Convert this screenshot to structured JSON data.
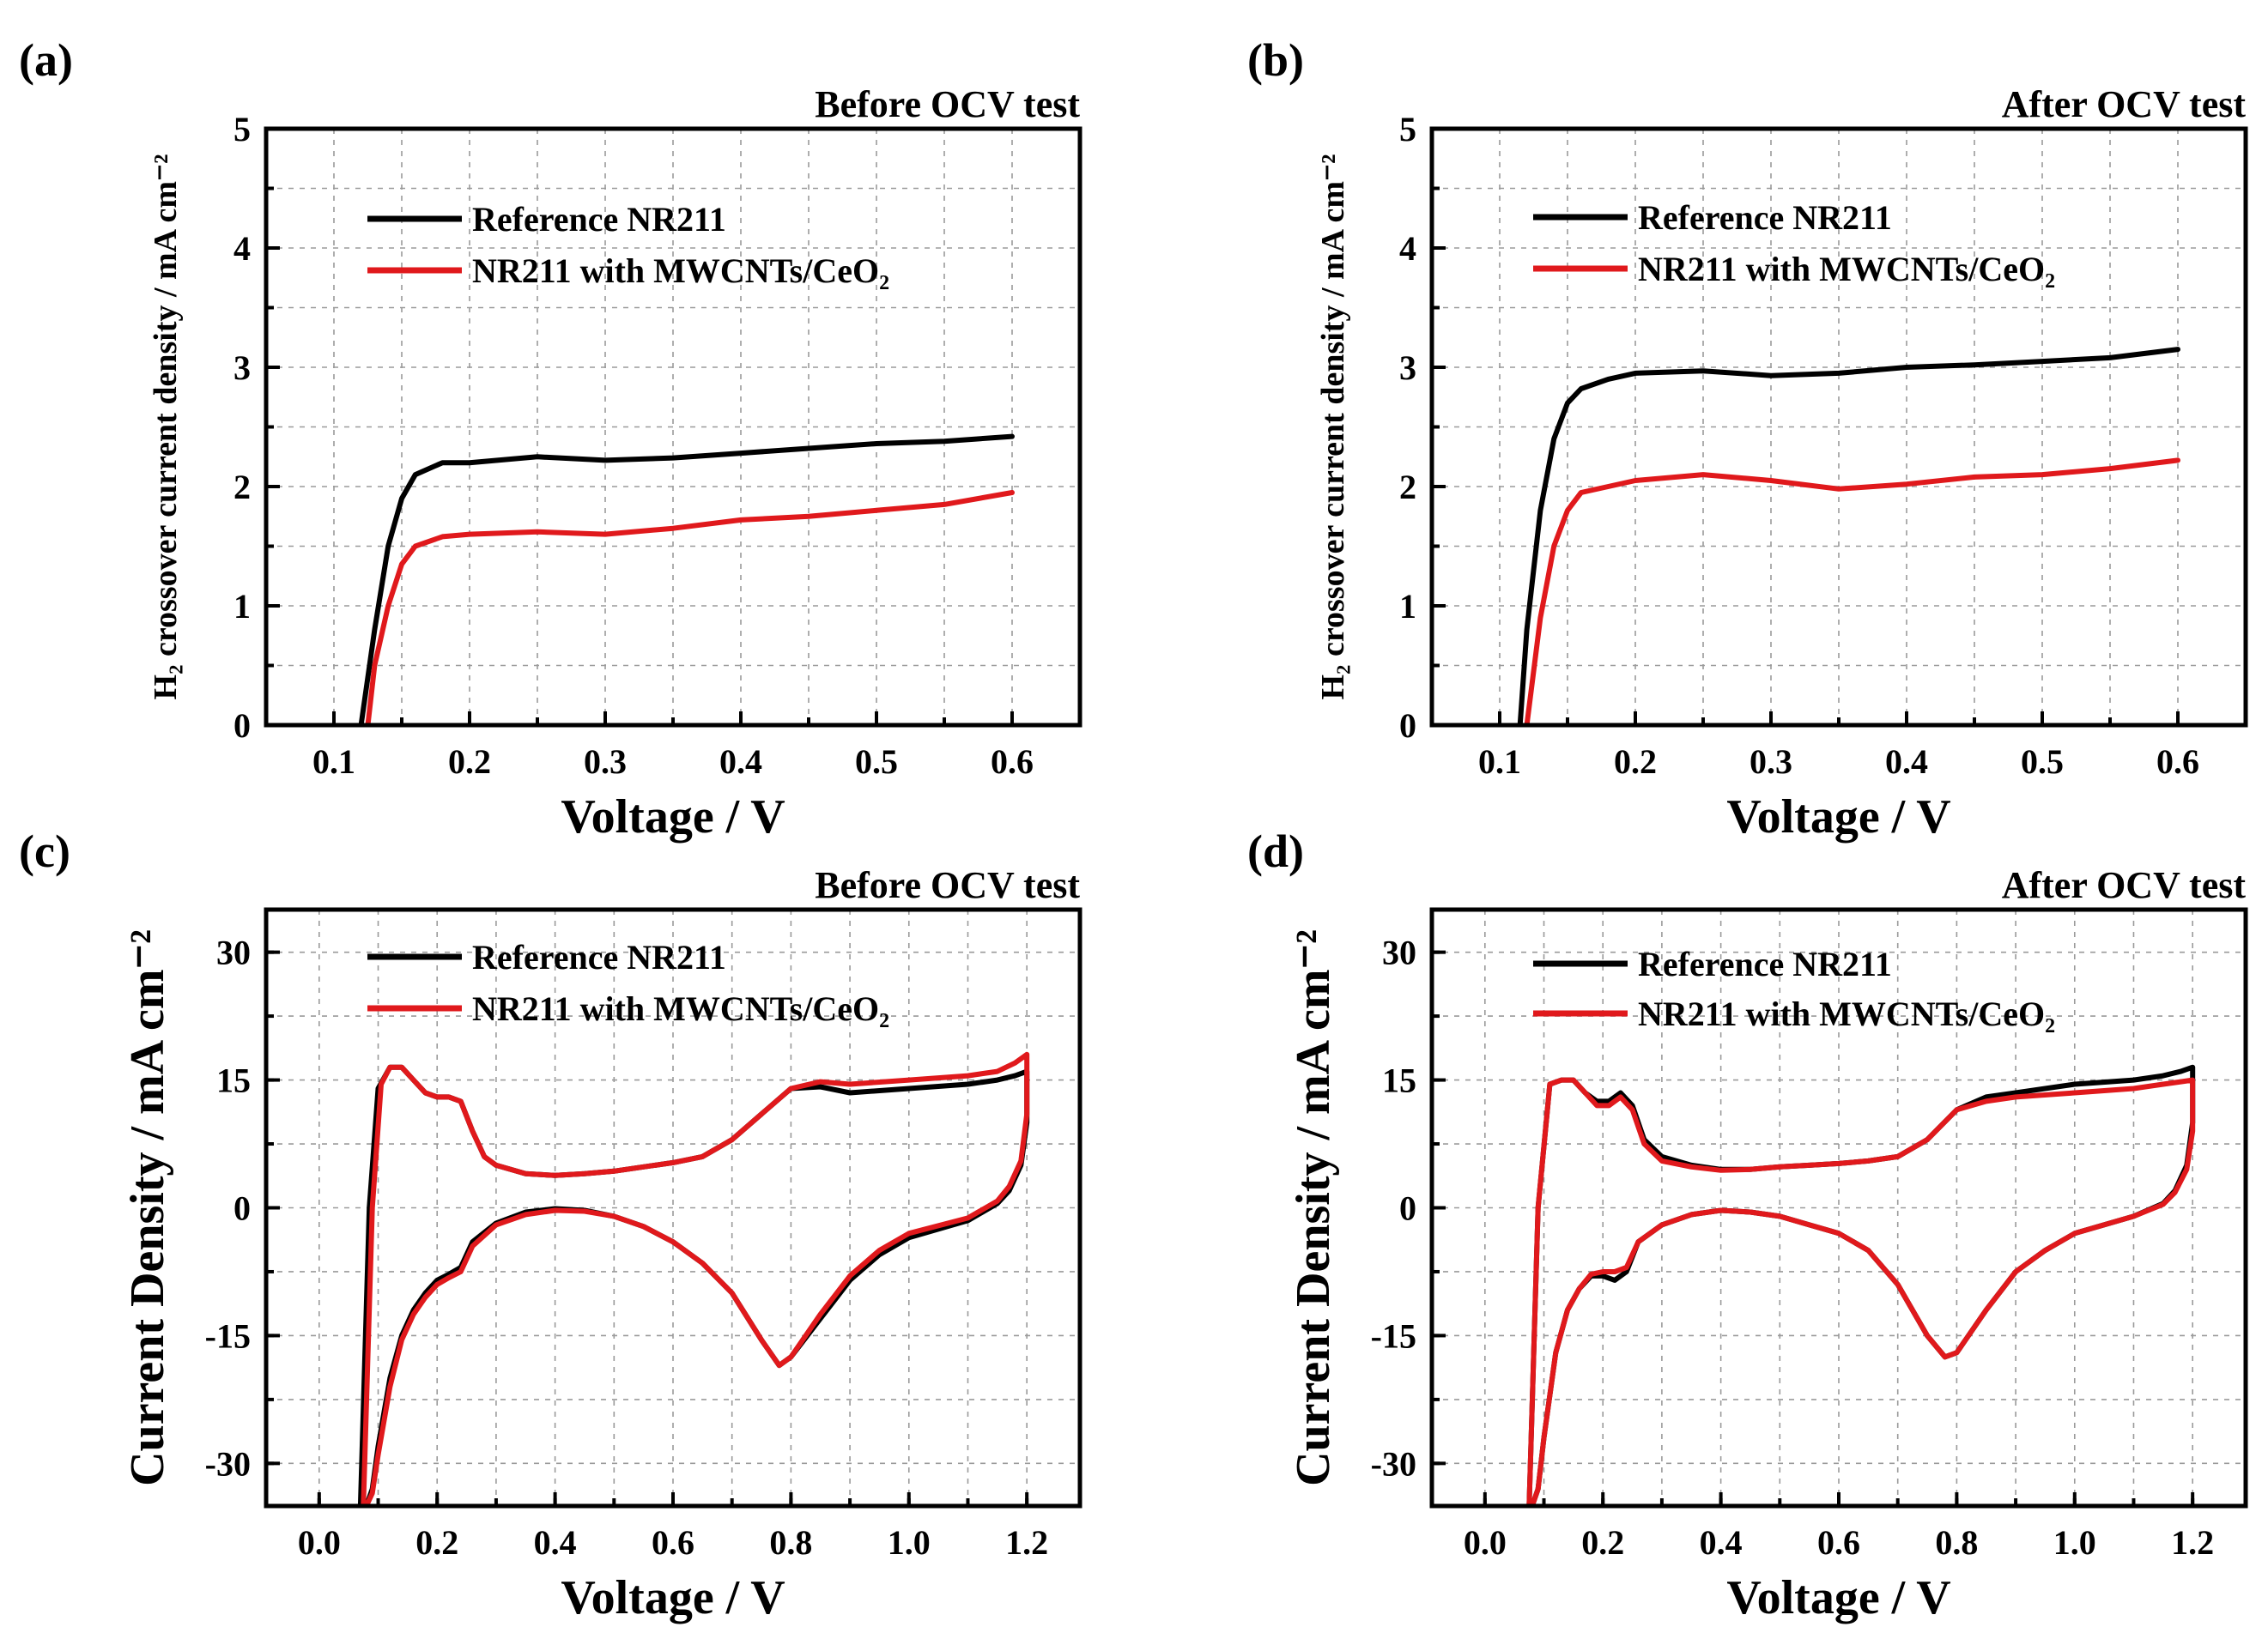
{
  "colors": {
    "reference": "#000000",
    "composite": "#e0191c"
  },
  "chart_data": [
    {
      "panel": "(a)",
      "title": "Before OCV test",
      "type": "line",
      "xlabel": "Voltage / V",
      "ylabel": "H₂ crossover current density / mA cm⁻²",
      "xlim": [
        0.05,
        0.65
      ],
      "ylim": [
        0,
        5
      ],
      "xticks": [
        0.1,
        0.2,
        0.3,
        0.4,
        0.5,
        0.6
      ],
      "xtick_labels": [
        "0.1",
        "0.2",
        "0.3",
        "0.4",
        "0.5",
        "0.6"
      ],
      "yticks": [
        0,
        1,
        2,
        3,
        4,
        5
      ],
      "ytick_labels": [
        "0",
        "1",
        "2",
        "3",
        "4",
        "5"
      ],
      "legend": [
        "Reference NR211",
        "NR211 with MWCNTs/CeO₂"
      ],
      "series": [
        {
          "name": "Reference NR211",
          "color": "#000000",
          "x": [
            0.12,
            0.13,
            0.14,
            0.15,
            0.16,
            0.18,
            0.2,
            0.25,
            0.3,
            0.35,
            0.4,
            0.45,
            0.5,
            0.55,
            0.6
          ],
          "y": [
            0.0,
            0.8,
            1.5,
            1.9,
            2.1,
            2.2,
            2.2,
            2.25,
            2.22,
            2.24,
            2.28,
            2.32,
            2.36,
            2.38,
            2.42
          ]
        },
        {
          "name": "NR211 with MWCNTs/CeO₂",
          "color": "#e0191c",
          "x": [
            0.125,
            0.13,
            0.14,
            0.15,
            0.16,
            0.18,
            0.2,
            0.25,
            0.3,
            0.35,
            0.4,
            0.45,
            0.5,
            0.55,
            0.6
          ],
          "y": [
            0.0,
            0.5,
            1.0,
            1.35,
            1.5,
            1.58,
            1.6,
            1.62,
            1.6,
            1.65,
            1.72,
            1.75,
            1.8,
            1.85,
            1.95
          ]
        }
      ]
    },
    {
      "panel": "(b)",
      "title": "After OCV test",
      "type": "line",
      "xlabel": "Voltage / V",
      "ylabel": "H₂ crossover current density / mA cm⁻²",
      "xlim": [
        0.05,
        0.65
      ],
      "ylim": [
        0,
        5
      ],
      "xticks": [
        0.1,
        0.2,
        0.3,
        0.4,
        0.5,
        0.6
      ],
      "xtick_labels": [
        "0.1",
        "0.2",
        "0.3",
        "0.4",
        "0.5",
        "0.6"
      ],
      "yticks": [
        0,
        1,
        2,
        3,
        4,
        5
      ],
      "ytick_labels": [
        "0",
        "1",
        "2",
        "3",
        "4",
        "5"
      ],
      "legend": [
        "Reference NR211",
        "NR211 with MWCNTs/CeO₂"
      ],
      "series": [
        {
          "name": "Reference NR211",
          "color": "#000000",
          "x": [
            0.115,
            0.12,
            0.13,
            0.14,
            0.15,
            0.16,
            0.18,
            0.2,
            0.25,
            0.3,
            0.35,
            0.4,
            0.45,
            0.5,
            0.55,
            0.6
          ],
          "y": [
            0.0,
            0.8,
            1.8,
            2.4,
            2.7,
            2.82,
            2.9,
            2.95,
            2.97,
            2.93,
            2.95,
            3.0,
            3.02,
            3.05,
            3.08,
            3.15
          ]
        },
        {
          "name": "NR211 with MWCNTs/CeO₂",
          "color": "#e0191c",
          "x": [
            0.12,
            0.13,
            0.14,
            0.15,
            0.16,
            0.18,
            0.2,
            0.25,
            0.3,
            0.35,
            0.4,
            0.45,
            0.5,
            0.55,
            0.6
          ],
          "y": [
            0.0,
            0.9,
            1.5,
            1.8,
            1.95,
            2.0,
            2.05,
            2.1,
            2.05,
            1.98,
            2.02,
            2.08,
            2.1,
            2.15,
            2.22
          ]
        }
      ]
    },
    {
      "panel": "(c)",
      "title": "Before OCV test",
      "type": "line",
      "xlabel": "Voltage / V",
      "ylabel": "Current Density / mA cm⁻²",
      "xlim": [
        -0.09,
        1.29
      ],
      "ylim": [
        -35,
        35
      ],
      "xticks": [
        0.0,
        0.2,
        0.4,
        0.6,
        0.8,
        1.0,
        1.2
      ],
      "xtick_labels": [
        "0.0",
        "0.2",
        "0.4",
        "0.6",
        "0.8",
        "1.0",
        "1.2"
      ],
      "yticks": [
        -30,
        -15,
        0,
        15,
        30
      ],
      "ytick_labels": [
        "-30",
        "-15",
        "0",
        "15",
        "30"
      ],
      "legend": [
        "Reference NR211",
        "NR211 with MWCNTs/CeO₂"
      ],
      "series": [
        {
          "name": "Reference NR211",
          "color": "#000000",
          "x": [
            0.07,
            0.085,
            0.1,
            0.12,
            0.14,
            0.16,
            0.18,
            0.2,
            0.22,
            0.24,
            0.26,
            0.28,
            0.3,
            0.35,
            0.4,
            0.45,
            0.5,
            0.55,
            0.6,
            0.65,
            0.7,
            0.75,
            0.8,
            0.85,
            0.9,
            1.0,
            1.1,
            1.15,
            1.18,
            1.2,
            1.2,
            1.19,
            1.17,
            1.15,
            1.1,
            1.0,
            0.95,
            0.9,
            0.85,
            0.8,
            0.78,
            0.75,
            0.7,
            0.65,
            0.6,
            0.55,
            0.5,
            0.45,
            0.4,
            0.35,
            0.3,
            0.26,
            0.24,
            0.22,
            0.2,
            0.18,
            0.16,
            0.14,
            0.12,
            0.1,
            0.09,
            0.08
          ],
          "y": [
            -35,
            0,
            14,
            16.5,
            16.5,
            15,
            13.5,
            13,
            13,
            12.5,
            9,
            6,
            5,
            4,
            3.8,
            4,
            4.3,
            4.8,
            5.3,
            6,
            8,
            11,
            14,
            14.2,
            13.5,
            14,
            14.5,
            15,
            15.5,
            16,
            10,
            5,
            2,
            0.5,
            -1.5,
            -3.5,
            -5.5,
            -8.5,
            -13,
            -17.5,
            -18.5,
            -15.5,
            -10,
            -6.5,
            -4,
            -2.2,
            -1,
            -0.3,
            -0.1,
            -0.5,
            -1.8,
            -4,
            -7,
            -7.8,
            -8.5,
            -10,
            -12,
            -15,
            -20,
            -28,
            -33,
            -35
          ]
        },
        {
          "name": "NR211 with MWCNTs/CeO₂",
          "color": "#e0191c",
          "x": [
            0.075,
            0.09,
            0.105,
            0.12,
            0.14,
            0.16,
            0.18,
            0.2,
            0.22,
            0.24,
            0.26,
            0.28,
            0.3,
            0.35,
            0.4,
            0.45,
            0.5,
            0.55,
            0.6,
            0.65,
            0.7,
            0.75,
            0.8,
            0.85,
            0.9,
            1.0,
            1.1,
            1.15,
            1.18,
            1.2,
            1.2,
            1.19,
            1.17,
            1.15,
            1.1,
            1.0,
            0.95,
            0.9,
            0.85,
            0.8,
            0.78,
            0.75,
            0.7,
            0.65,
            0.6,
            0.55,
            0.5,
            0.45,
            0.4,
            0.35,
            0.3,
            0.26,
            0.24,
            0.22,
            0.2,
            0.18,
            0.16,
            0.14,
            0.12,
            0.1,
            0.09,
            0.08
          ],
          "y": [
            -35,
            0,
            14.5,
            16.5,
            16.5,
            15,
            13.5,
            13,
            13,
            12.5,
            9,
            6,
            5,
            4,
            3.8,
            4,
            4.3,
            4.8,
            5.3,
            6,
            8,
            11,
            14,
            14.8,
            14.5,
            15,
            15.5,
            16,
            17,
            18,
            11,
            5.5,
            2.5,
            0.8,
            -1.2,
            -3,
            -5,
            -8,
            -12.5,
            -17.5,
            -18.5,
            -15.5,
            -10,
            -6.5,
            -4,
            -2.2,
            -1,
            -0.4,
            -0.3,
            -0.8,
            -2,
            -4.5,
            -7.5,
            -8.2,
            -9,
            -10.5,
            -12.5,
            -15.5,
            -21,
            -29,
            -33.5,
            -35
          ]
        }
      ]
    },
    {
      "panel": "(d)",
      "title": "After OCV test",
      "type": "line",
      "xlabel": "Voltage / V",
      "ylabel": "Current Density / mA cm⁻²",
      "xlim": [
        -0.09,
        1.29
      ],
      "ylim": [
        -35,
        35
      ],
      "xticks": [
        0.0,
        0.2,
        0.4,
        0.6,
        0.8,
        1.0,
        1.2
      ],
      "xtick_labels": [
        "0.0",
        "0.2",
        "0.4",
        "0.6",
        "0.8",
        "1.0",
        "1.2"
      ],
      "yticks": [
        -30,
        -15,
        0,
        15,
        30
      ],
      "ytick_labels": [
        "-30",
        "-15",
        "0",
        "15",
        "30"
      ],
      "legend": [
        "Reference NR211",
        "NR211 with MWCNTs/CeO₂"
      ],
      "series": [
        {
          "name": "Reference NR211",
          "color": "#000000",
          "x": [
            0.075,
            0.09,
            0.11,
            0.13,
            0.15,
            0.17,
            0.19,
            0.21,
            0.23,
            0.25,
            0.27,
            0.3,
            0.35,
            0.4,
            0.45,
            0.5,
            0.55,
            0.6,
            0.65,
            0.7,
            0.75,
            0.8,
            0.85,
            0.9,
            1.0,
            1.1,
            1.15,
            1.18,
            1.2,
            1.2,
            1.19,
            1.17,
            1.15,
            1.1,
            1.0,
            0.95,
            0.9,
            0.85,
            0.8,
            0.78,
            0.75,
            0.7,
            0.65,
            0.6,
            0.55,
            0.5,
            0.45,
            0.4,
            0.35,
            0.3,
            0.26,
            0.24,
            0.22,
            0.2,
            0.18,
            0.16,
            0.14,
            0.12,
            0.1,
            0.09,
            0.08
          ],
          "y": [
            -35,
            0,
            14.5,
            15,
            15,
            13.5,
            12.5,
            12.5,
            13.5,
            12,
            8,
            6,
            5,
            4.5,
            4.5,
            4.8,
            5,
            5.2,
            5.5,
            6,
            8,
            11.5,
            13,
            13.5,
            14.5,
            15,
            15.5,
            16,
            16.5,
            10,
            5,
            2,
            0.5,
            -1,
            -3,
            -5,
            -7.5,
            -12,
            -17,
            -17.5,
            -15,
            -9,
            -5,
            -3,
            -2,
            -1,
            -0.5,
            -0.3,
            -0.8,
            -2,
            -4,
            -7.5,
            -8.5,
            -8,
            -8,
            -9.5,
            -12,
            -17,
            -27,
            -33,
            -35
          ]
        },
        {
          "name": "NR211 with MWCNTs/CeO₂",
          "color": "#e0191c",
          "x": [
            0.075,
            0.09,
            0.11,
            0.13,
            0.15,
            0.17,
            0.19,
            0.21,
            0.23,
            0.25,
            0.27,
            0.3,
            0.35,
            0.4,
            0.45,
            0.5,
            0.55,
            0.6,
            0.65,
            0.7,
            0.75,
            0.8,
            0.85,
            0.9,
            1.0,
            1.1,
            1.15,
            1.18,
            1.2,
            1.2,
            1.19,
            1.17,
            1.15,
            1.1,
            1.0,
            0.95,
            0.9,
            0.85,
            0.8,
            0.78,
            0.75,
            0.7,
            0.65,
            0.6,
            0.55,
            0.5,
            0.45,
            0.4,
            0.35,
            0.3,
            0.26,
            0.24,
            0.22,
            0.2,
            0.18,
            0.16,
            0.14,
            0.12,
            0.1,
            0.09,
            0.08
          ],
          "y": [
            -35,
            0,
            14.5,
            15,
            15,
            13.5,
            12,
            12,
            13,
            11.5,
            7.5,
            5.5,
            4.8,
            4.4,
            4.5,
            4.8,
            5,
            5.2,
            5.5,
            6,
            8,
            11.5,
            12.5,
            13,
            13.5,
            14,
            14.5,
            14.8,
            15,
            9,
            4.5,
            1.8,
            0.4,
            -1,
            -3,
            -5,
            -7.5,
            -12,
            -17,
            -17.5,
            -15,
            -9,
            -5,
            -3,
            -2,
            -1,
            -0.5,
            -0.3,
            -0.8,
            -2,
            -4,
            -7,
            -7.5,
            -7.5,
            -7.8,
            -9.5,
            -12,
            -17,
            -27,
            -33,
            -35
          ]
        }
      ]
    }
  ]
}
